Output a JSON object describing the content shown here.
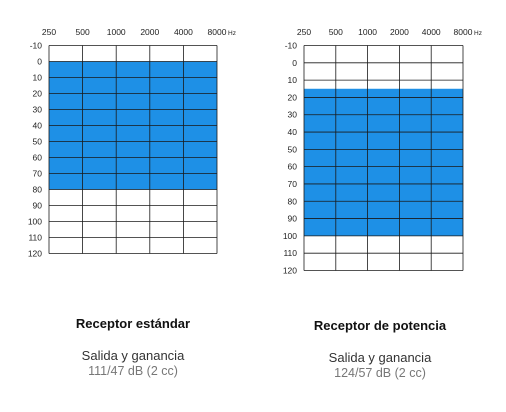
{
  "colors": {
    "fill": "#1e90e6",
    "grid": "#1a1a1a",
    "background": "#ffffff"
  },
  "chart_data": [
    {
      "type": "heatmap",
      "x_ticks": [
        "250",
        "500",
        "1000",
        "2000",
        "4000",
        "8000"
      ],
      "x_unit": "Hz",
      "y_ticks": [
        "-10",
        "0",
        "10",
        "20",
        "30",
        "40",
        "50",
        "60",
        "70",
        "80",
        "90",
        "100",
        "110",
        "120"
      ],
      "ylim": [
        -10,
        120
      ],
      "y_inverted": true,
      "fitting_range_db": [
        0,
        80
      ],
      "title": "Receptor estándar",
      "subtitle": "Salida y ganancia",
      "value_text": "111/47 dB (2 cc)"
    },
    {
      "type": "heatmap",
      "x_ticks": [
        "250",
        "500",
        "1000",
        "2000",
        "4000",
        "8000"
      ],
      "x_unit": "Hz",
      "y_ticks": [
        "-10",
        "0",
        "10",
        "20",
        "30",
        "40",
        "50",
        "60",
        "70",
        "80",
        "90",
        "100",
        "110",
        "120"
      ],
      "ylim": [
        -10,
        120
      ],
      "y_inverted": true,
      "fitting_range_db": [
        15,
        100
      ],
      "title": "Receptor de potencia",
      "subtitle": "Salida y ganancia",
      "value_text": "124/57 dB (2 cc)"
    }
  ]
}
